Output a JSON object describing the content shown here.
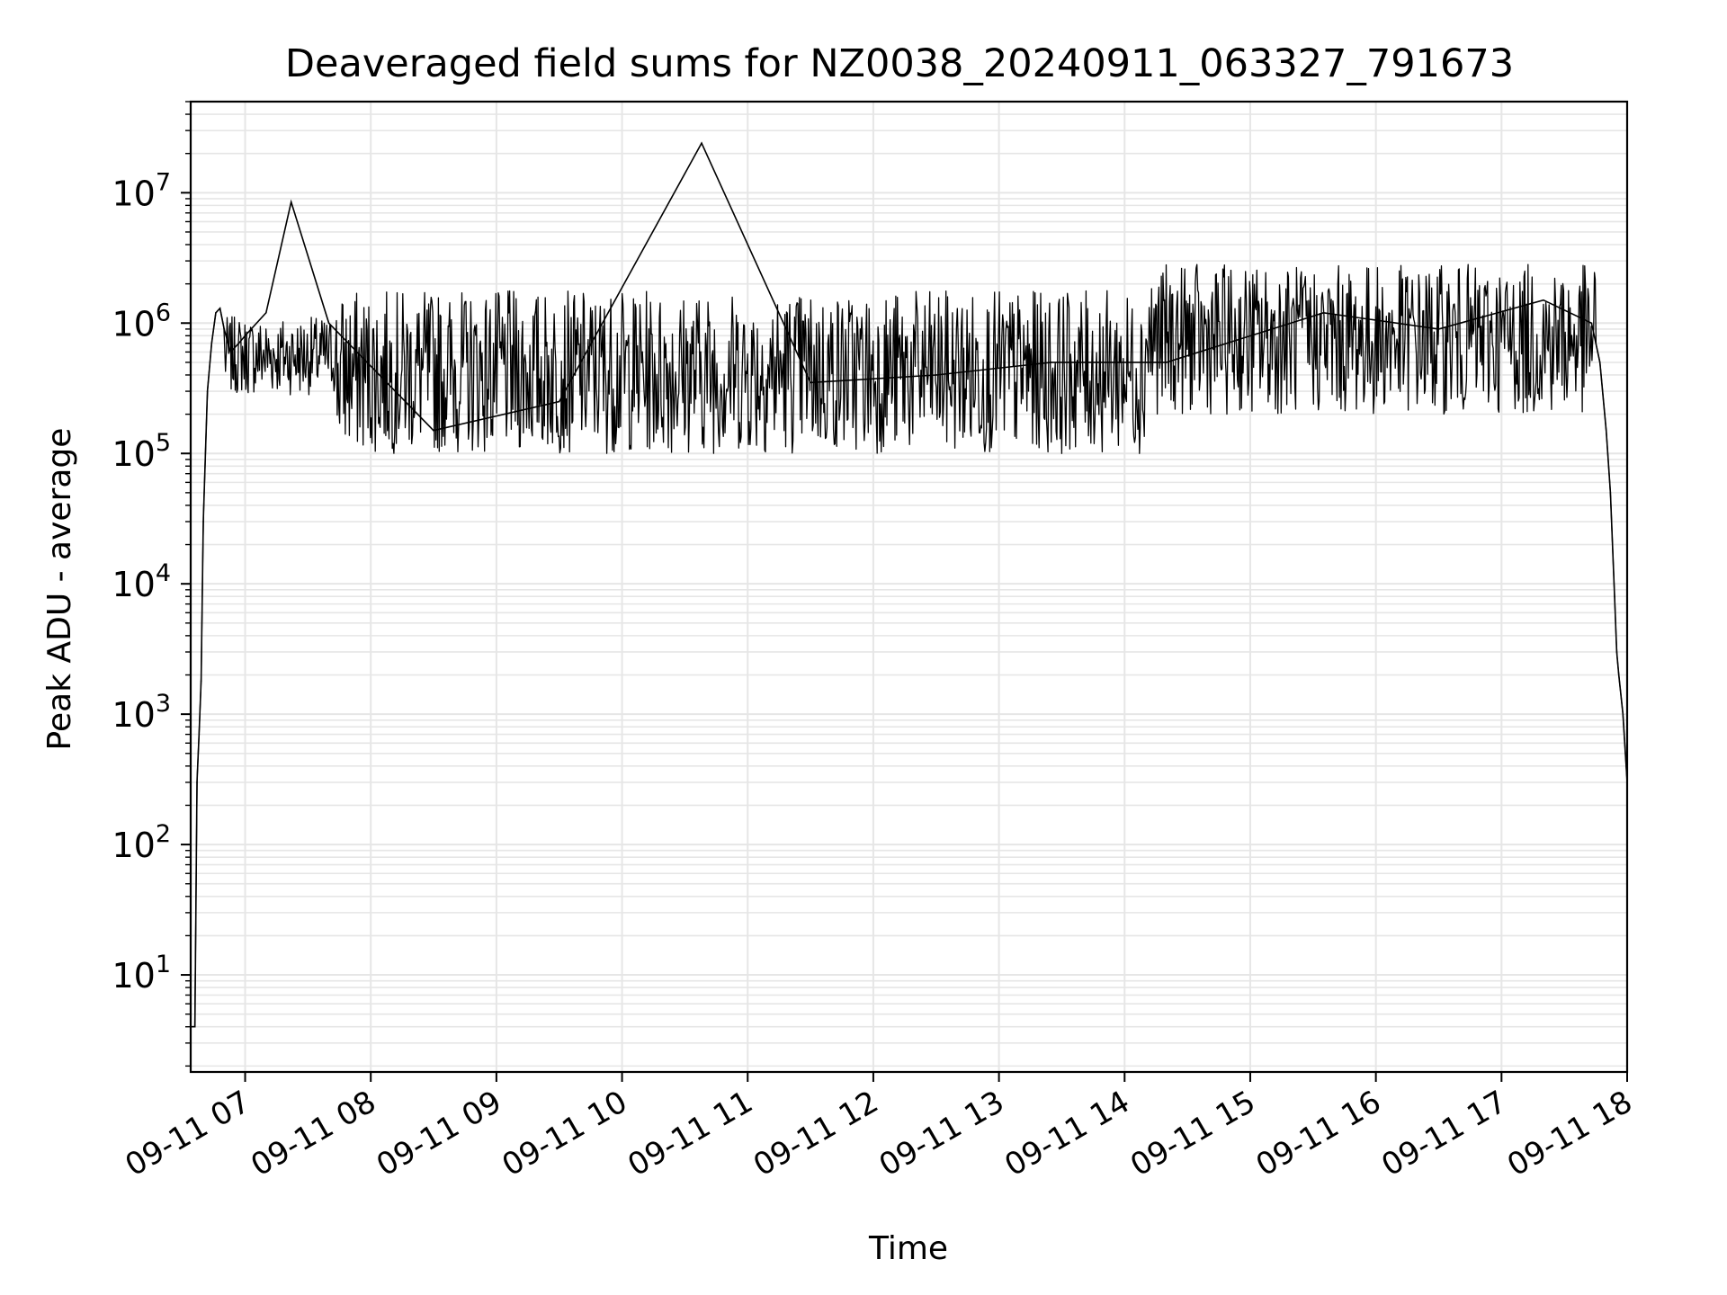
{
  "chart_data": {
    "type": "line",
    "title": "Deaveraged field sums for NZ0038_20240911_063327_791673",
    "xlabel": "Time",
    "ylabel": "Peak ADU - average",
    "y_scale": "log",
    "ylim": [
      1.8,
      50000000
    ],
    "xlim": [
      "2024-09-11 06:34",
      "2024-09-11 18:00"
    ],
    "x_ticks": [
      "09-11 07",
      "09-11 08",
      "09-11 09",
      "09-11 10",
      "09-11 11",
      "09-11 12",
      "09-11 13",
      "09-11 14",
      "09-11 15",
      "09-11 16",
      "09-11 17",
      "09-11 18"
    ],
    "x_tick_times": [
      "2024-09-11 07:00",
      "2024-09-11 08:00",
      "2024-09-11 09:00",
      "2024-09-11 10:00",
      "2024-09-11 11:00",
      "2024-09-11 12:00",
      "2024-09-11 13:00",
      "2024-09-11 14:00",
      "2024-09-11 15:00",
      "2024-09-11 16:00",
      "2024-09-11 17:00",
      "2024-09-11 18:00"
    ],
    "y_ticks": [
      10,
      100,
      1000,
      10000,
      100000,
      1000000,
      10000000
    ],
    "y_tick_labels": [
      {
        "base": "10",
        "exp": "1"
      },
      {
        "base": "10",
        "exp": "2"
      },
      {
        "base": "10",
        "exp": "3"
      },
      {
        "base": "10",
        "exp": "4"
      },
      {
        "base": "10",
        "exp": "5"
      },
      {
        "base": "10",
        "exp": "6"
      },
      {
        "base": "10",
        "exp": "7"
      }
    ],
    "grid": true,
    "series_color": "#000000",
    "grid_color": "#e6e6e6",
    "series": [
      {
        "x": [
          "2024-09-11 06:34",
          "2024-09-11 06:35",
          "2024-09-11 06:36",
          "2024-09-11 06:37",
          "2024-09-11 06:38",
          "2024-09-11 06:39",
          "2024-09-11 06:40",
          "2024-09-11 06:42",
          "2024-09-11 06:44",
          "2024-09-11 06:46",
          "2024-09-11 06:48",
          "2024-09-11 06:50",
          "2024-09-11 06:53",
          "2024-09-11 06:57",
          "2024-09-11 07:00",
          "2024-09-11 07:10",
          "2024-09-11 07:22",
          "2024-09-11 07:40",
          "2024-09-11 08:30",
          "2024-09-11 09:30",
          "2024-09-11 10:38",
          "2024-09-11 11:30",
          "2024-09-11 12:30",
          "2024-09-11 13:25",
          "2024-09-11 14:20",
          "2024-09-11 15:35",
          "2024-09-11 16:30",
          "2024-09-11 17:20",
          "2024-09-11 17:43",
          "2024-09-11 17:47",
          "2024-09-11 17:50",
          "2024-09-11 17:52",
          "2024-09-11 17:54",
          "2024-09-11 17:55",
          "2024-09-11 17:56",
          "2024-09-11 17:58",
          "2024-09-11 18:00"
        ],
        "y": [
          4,
          4,
          4,
          300,
          700,
          1800,
          30000,
          300000,
          700000,
          1200000,
          1300000,
          900000,
          600000,
          700000,
          800000,
          1200000,
          8500000,
          1000000,
          150000,
          250000,
          24000000,
          350000,
          400000,
          500000,
          500000,
          1200000,
          900000,
          1500000,
          1000000,
          500000,
          150000,
          50000,
          8000,
          3000,
          2000,
          1000,
          300
        ]
      }
    ]
  }
}
